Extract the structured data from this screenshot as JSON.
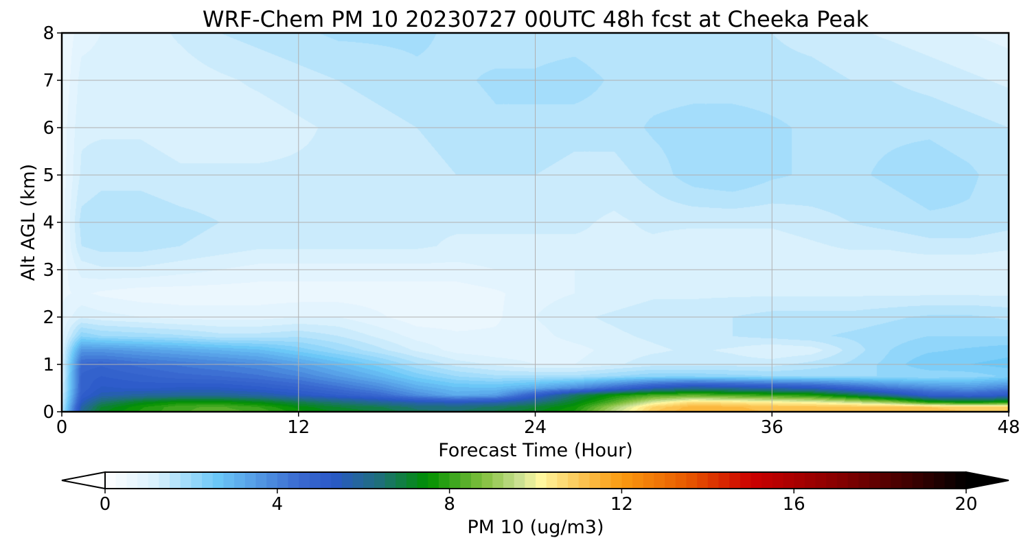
{
  "chart_data": {
    "type": "heatmap",
    "title": "WRF-Chem PM 10  20230727 00UTC 48h fcst at Cheeka Peak",
    "xlabel": "Forecast Time (Hour)",
    "ylabel": "Alt AGL (km)",
    "xlim": [
      0,
      48
    ],
    "ylim": [
      0,
      8
    ],
    "xticks": [
      0,
      12,
      24,
      36,
      48
    ],
    "yticks": [
      0,
      1,
      2,
      3,
      4,
      5,
      6,
      7,
      8
    ],
    "grid": true,
    "colorbar": {
      "label": "PM 10  (ug/m3)",
      "orientation": "horizontal",
      "placement": "bottom",
      "extend": "both",
      "vmin": 0,
      "vmax": 20,
      "levels": 80,
      "ticks": [
        0,
        4,
        8,
        12,
        16,
        20
      ],
      "color_stops": [
        {
          "value": 0,
          "color": "#ffffff"
        },
        {
          "value": 1.2,
          "color": "#d8f0fd"
        },
        {
          "value": 2.6,
          "color": "#6cc8f8"
        },
        {
          "value": 4.5,
          "color": "#3a6ad0"
        },
        {
          "value": 5.3,
          "color": "#2a58c8"
        },
        {
          "value": 6.4,
          "color": "#1e7078"
        },
        {
          "value": 7.5,
          "color": "#009000"
        },
        {
          "value": 8.8,
          "color": "#84c040"
        },
        {
          "value": 9.6,
          "color": "#c8e090"
        },
        {
          "value": 10.1,
          "color": "#fff8a0"
        },
        {
          "value": 11,
          "color": "#fcc858"
        },
        {
          "value": 12,
          "color": "#fa9a10"
        },
        {
          "value": 13.5,
          "color": "#e85a00"
        },
        {
          "value": 15,
          "color": "#cc0000"
        },
        {
          "value": 17,
          "color": "#880000"
        },
        {
          "value": 18.8,
          "color": "#3a0000"
        },
        {
          "value": 20,
          "color": "#000000"
        }
      ],
      "under_color": "#ffffff",
      "over_color": "#000000"
    },
    "x": [
      0,
      1,
      2,
      4,
      6,
      8,
      10,
      12,
      14,
      16,
      18,
      20,
      22,
      24,
      26,
      28,
      30,
      32,
      34,
      36,
      38,
      40,
      42,
      44,
      46,
      48
    ],
    "y": [
      0,
      0.1,
      0.2,
      0.35,
      0.5,
      0.75,
      1,
      1.3,
      1.6,
      2,
      2.5,
      3,
      3.5,
      4,
      5,
      6,
      7,
      8
    ],
    "z": [
      [
        1.5,
        6,
        7.2,
        7.8,
        8.2,
        8.4,
        8.2,
        7.6,
        7.2,
        7,
        6.6,
        6.5,
        6.8,
        7.2,
        7.8,
        9.5,
        11,
        11.5,
        11.4,
        11.2,
        11.2,
        11.2,
        11.2,
        11.1,
        11,
        11
      ],
      [
        1.4,
        5.8,
        7,
        7.7,
        8.2,
        8.3,
        8,
        7.4,
        7,
        6.8,
        6.4,
        6.3,
        6.6,
        7,
        7.6,
        9.2,
        10.8,
        11.4,
        11.3,
        11.1,
        11.1,
        11.1,
        11.1,
        11,
        10.9,
        10.8
      ],
      [
        1.3,
        5.4,
        6.5,
        7.2,
        7.6,
        7.6,
        7.3,
        6.8,
        6.4,
        6,
        5.6,
        5.4,
        5.6,
        6.3,
        7.2,
        8.4,
        9.8,
        10.6,
        10.4,
        10.2,
        10,
        9.6,
        9,
        7.8,
        7.5,
        7.8
      ],
      [
        1.2,
        5,
        5.6,
        5.9,
        6,
        6,
        5.8,
        5.4,
        5,
        4.6,
        3.8,
        3.2,
        3.4,
        5,
        6.6,
        7.6,
        8.2,
        8.4,
        8.2,
        8,
        7.8,
        7,
        6,
        5,
        4.8,
        5.2
      ],
      [
        1.1,
        4.8,
        5.3,
        5.2,
        5.3,
        5.3,
        5.1,
        4.8,
        4.4,
        3.9,
        3.2,
        2.8,
        2.8,
        3.2,
        3.8,
        4.6,
        5.5,
        6,
        5.8,
        5.6,
        5.4,
        4.8,
        4.2,
        3.8,
        3.6,
        4
      ],
      [
        1,
        4.8,
        5,
        4.8,
        4.6,
        4.5,
        4.3,
        4,
        3.5,
        3,
        2.4,
        2,
        1.8,
        1.8,
        1.8,
        2,
        2.2,
        2.2,
        2.1,
        2,
        2,
        2,
        2,
        2,
        2.1,
        2.3
      ],
      [
        1,
        4.6,
        4.7,
        4.4,
        4.2,
        4,
        3.8,
        3.4,
        2.9,
        2.4,
        1.8,
        1.4,
        1.2,
        1,
        1,
        1.2,
        1.4,
        1.4,
        1.4,
        1.4,
        1.6,
        1.8,
        2.1,
        2.5,
        2.5,
        2.6
      ],
      [
        1,
        3.6,
        3.6,
        3.4,
        3.2,
        3,
        2.8,
        2.4,
        2,
        1.6,
        1.2,
        0.9,
        0.8,
        0.8,
        0.9,
        1.1,
        1.2,
        1.3,
        1.2,
        1,
        1.1,
        1.6,
        2,
        2.2,
        2.3,
        2.4
      ],
      [
        0.9,
        2.2,
        2,
        1.9,
        1.8,
        1.6,
        1.6,
        1.7,
        1.5,
        1.2,
        0.9,
        0.8,
        0.8,
        0.9,
        1.1,
        1.2,
        1.3,
        1.4,
        1.5,
        1.6,
        1.7,
        1.8,
        1.9,
        2,
        2,
        2
      ],
      [
        0.8,
        1.2,
        1.1,
        1,
        0.9,
        0.9,
        0.9,
        1,
        1,
        0.8,
        0.6,
        0.6,
        0.7,
        1,
        1.2,
        1.3,
        1.4,
        1.4,
        1.5,
        1.6,
        1.6,
        1.6,
        1.7,
        1.8,
        1.8,
        1.7
      ],
      [
        0.7,
        0.8,
        0.7,
        0.6,
        0.6,
        0.6,
        0.6,
        0.6,
        0.6,
        0.6,
        0.6,
        0.6,
        0.7,
        0.9,
        1,
        1.1,
        1.2,
        1.2,
        1.2,
        1.2,
        1.2,
        1.2,
        1.2,
        1.2,
        1.2,
        1.2
      ],
      [
        0.6,
        1.1,
        1.2,
        1.2,
        1.1,
        1,
        0.9,
        0.9,
        0.9,
        0.9,
        0.9,
        0.9,
        1,
        1,
        1,
        1,
        1.1,
        1.1,
        1.1,
        1,
        1,
        1,
        1,
        1,
        1,
        1
      ],
      [
        0.6,
        1.5,
        1.6,
        1.6,
        1.5,
        1.4,
        1.3,
        1.3,
        1.3,
        1.3,
        1.3,
        1.2,
        1.2,
        1.2,
        1.2,
        1.2,
        1.2,
        1.1,
        1.1,
        1.1,
        1.2,
        1.3,
        1.3,
        1.4,
        1.4,
        1.3
      ],
      [
        0.6,
        1.6,
        1.7,
        1.7,
        1.6,
        1.5,
        1.4,
        1.4,
        1.3,
        1.3,
        1.3,
        1.3,
        1.3,
        1.3,
        1.3,
        1.2,
        1.3,
        1.3,
        1.3,
        1.3,
        1.4,
        1.5,
        1.6,
        1.7,
        1.7,
        1.6
      ],
      [
        0.6,
        1.3,
        1.4,
        1.4,
        1.3,
        1.3,
        1.3,
        1.3,
        1.3,
        1.4,
        1.4,
        1.5,
        1.5,
        1.5,
        1.4,
        1.4,
        1.6,
        1.9,
        2,
        1.8,
        1.7,
        1.7,
        1.8,
        1.9,
        1.8,
        1.6
      ],
      [
        0.6,
        1.2,
        1.2,
        1.2,
        1.1,
        1.1,
        1.1,
        1.2,
        1.3,
        1.4,
        1.5,
        1.6,
        1.7,
        1.7,
        1.6,
        1.6,
        1.8,
        1.9,
        1.9,
        1.8,
        1.7,
        1.7,
        1.7,
        1.7,
        1.6,
        1.5
      ],
      [
        0.5,
        1.1,
        1.1,
        1.1,
        1.1,
        1.2,
        1.3,
        1.4,
        1.5,
        1.6,
        1.7,
        1.7,
        1.8,
        1.8,
        1.9,
        1.7,
        1.6,
        1.6,
        1.6,
        1.6,
        1.6,
        1.5,
        1.5,
        1.4,
        1.3,
        1.2
      ],
      [
        0.5,
        0.9,
        1,
        1.1,
        1.3,
        1.5,
        1.6,
        1.7,
        1.8,
        1.8,
        1.8,
        1.7,
        1.6,
        1.6,
        1.6,
        1.5,
        1.5,
        1.6,
        1.6,
        1.5,
        1.4,
        1.3,
        1.2,
        1.1,
        1,
        0.9
      ]
    ]
  }
}
